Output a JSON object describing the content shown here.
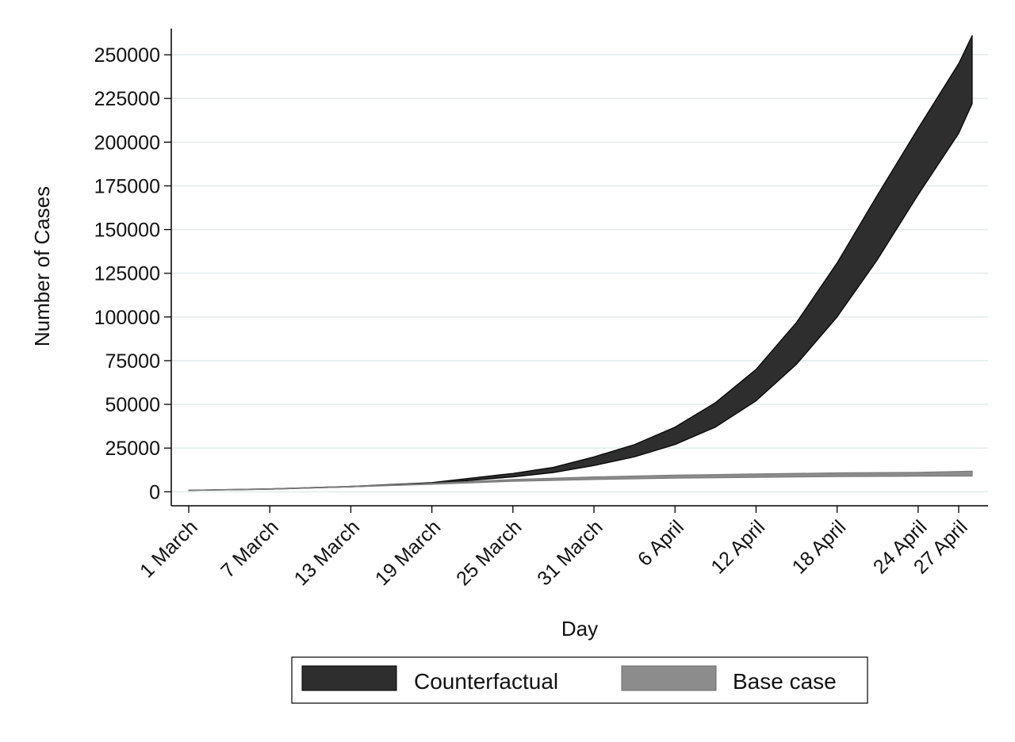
{
  "chart_data": {
    "type": "area",
    "title": "",
    "xlabel": "Day",
    "ylabel": "Number of Cases",
    "x_start": "1 March",
    "x_end": "28 April",
    "ylim": [
      -8000,
      265000
    ],
    "yticks": [
      0,
      25000,
      50000,
      75000,
      100000,
      125000,
      150000,
      175000,
      200000,
      225000,
      250000
    ],
    "ytick_labels": [
      "0",
      "25000",
      "50000",
      "75000",
      "100000",
      "125000",
      "150000",
      "175000",
      "200000",
      "225000",
      "250000"
    ],
    "xticks": [
      {
        "date": "1 March",
        "label": "1 March"
      },
      {
        "date": "7 March",
        "label": "7 March"
      },
      {
        "date": "13 March",
        "label": "13 March"
      },
      {
        "date": "19 March",
        "label": "19 March"
      },
      {
        "date": "25 March",
        "label": "25 March"
      },
      {
        "date": "31 March",
        "label": "31 March"
      },
      {
        "date": "6 April",
        "label": "6 April"
      },
      {
        "date": "12 April",
        "label": "12 April"
      },
      {
        "date": "18 April",
        "label": "18 April"
      },
      {
        "date": "24 April",
        "label": "24 April"
      },
      {
        "date": "27 April",
        "label": "27 April"
      }
    ],
    "grid": true,
    "legend_position": "bottom",
    "series": [
      {
        "name": "Counterfactual",
        "color": "#2e2e2e",
        "points": [
          {
            "x": "1 March",
            "lower": 800,
            "upper": 900
          },
          {
            "x": "7 March",
            "lower": 1500,
            "upper": 1700
          },
          {
            "x": "13 March",
            "lower": 2800,
            "upper": 3100
          },
          {
            "x": "19 March",
            "lower": 4700,
            "upper": 5300
          },
          {
            "x": "25 March",
            "lower": 8500,
            "upper": 10500
          },
          {
            "x": "28 March",
            "lower": 11000,
            "upper": 14000
          },
          {
            "x": "31 March",
            "lower": 15000,
            "upper": 20000
          },
          {
            "x": "3 April",
            "lower": 20000,
            "upper": 27000
          },
          {
            "x": "6 April",
            "lower": 27000,
            "upper": 37000
          },
          {
            "x": "9 April",
            "lower": 37000,
            "upper": 51000
          },
          {
            "x": "12 April",
            "lower": 52000,
            "upper": 70000
          },
          {
            "x": "15 April",
            "lower": 73000,
            "upper": 97000
          },
          {
            "x": "18 April",
            "lower": 100000,
            "upper": 131000
          },
          {
            "x": "21 April",
            "lower": 133000,
            "upper": 170000
          },
          {
            "x": "24 April",
            "lower": 170000,
            "upper": 208000
          },
          {
            "x": "27 April",
            "lower": 205000,
            "upper": 245000
          },
          {
            "x": "28 April",
            "lower": 222000,
            "upper": 261000
          }
        ]
      },
      {
        "name": "Base case",
        "color": "#8c8c8c",
        "points": [
          {
            "x": "1 March",
            "lower": 800,
            "upper": 900
          },
          {
            "x": "7 March",
            "lower": 1500,
            "upper": 1700
          },
          {
            "x": "13 March",
            "lower": 2800,
            "upper": 3100
          },
          {
            "x": "19 March",
            "lower": 4300,
            "upper": 4900
          },
          {
            "x": "25 March",
            "lower": 6000,
            "upper": 7000
          },
          {
            "x": "31 March",
            "lower": 7000,
            "upper": 8500
          },
          {
            "x": "6 April",
            "lower": 7800,
            "upper": 9500
          },
          {
            "x": "12 April",
            "lower": 8300,
            "upper": 10200
          },
          {
            "x": "18 April",
            "lower": 8700,
            "upper": 10800
          },
          {
            "x": "24 April",
            "lower": 8900,
            "upper": 11100
          },
          {
            "x": "28 April",
            "lower": 9000,
            "upper": 11800
          }
        ]
      }
    ]
  }
}
